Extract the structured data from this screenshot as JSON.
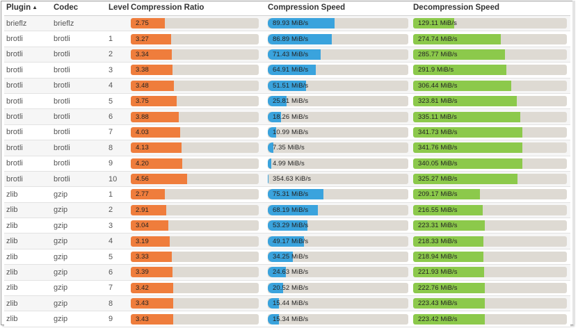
{
  "headers": {
    "plugin": "Plugin",
    "codec": "Codec",
    "level": "Level",
    "ratio": "Compression Ratio",
    "cspeed": "Compression Speed",
    "dspeed": "Decompression Speed"
  },
  "sort": {
    "column": "plugin",
    "direction": "ascending",
    "icon": "sort-ascending-icon"
  },
  "colors": {
    "ratio": "#ef7d3c",
    "cspeed": "#3aa3dd",
    "dspeed": "#8cc94b",
    "track": "#dedad3"
  },
  "scales": {
    "ratio_max": 10.4,
    "cspeed_max_mib": 190,
    "dspeed_max_mib": 480
  },
  "rows": [
    {
      "plugin": "brieflz",
      "codec": "brieflz",
      "level": "",
      "ratio": "2.75",
      "ratio_value": 2.75,
      "cspeed": "89.93 MiB/s",
      "cspeed_value": 89.93,
      "dspeed": "129.11 MiB/s",
      "dspeed_value": 129.11
    },
    {
      "plugin": "brotli",
      "codec": "brotli",
      "level": "1",
      "ratio": "3.27",
      "ratio_value": 3.27,
      "cspeed": "86.89 MiB/s",
      "cspeed_value": 86.89,
      "dspeed": "274.74 MiB/s",
      "dspeed_value": 274.74
    },
    {
      "plugin": "brotli",
      "codec": "brotli",
      "level": "2",
      "ratio": "3.34",
      "ratio_value": 3.34,
      "cspeed": "71.43 MiB/s",
      "cspeed_value": 71.43,
      "dspeed": "285.77 MiB/s",
      "dspeed_value": 285.77
    },
    {
      "plugin": "brotli",
      "codec": "brotli",
      "level": "3",
      "ratio": "3.38",
      "ratio_value": 3.38,
      "cspeed": "64.91 MiB/s",
      "cspeed_value": 64.91,
      "dspeed": "291.9 MiB/s",
      "dspeed_value": 291.9
    },
    {
      "plugin": "brotli",
      "codec": "brotli",
      "level": "4",
      "ratio": "3.48",
      "ratio_value": 3.48,
      "cspeed": "51.51 MiB/s",
      "cspeed_value": 51.51,
      "dspeed": "306.44 MiB/s",
      "dspeed_value": 306.44
    },
    {
      "plugin": "brotli",
      "codec": "brotli",
      "level": "5",
      "ratio": "3.75",
      "ratio_value": 3.75,
      "cspeed": "25.81 MiB/s",
      "cspeed_value": 25.81,
      "dspeed": "323.81 MiB/s",
      "dspeed_value": 323.81
    },
    {
      "plugin": "brotli",
      "codec": "brotli",
      "level": "6",
      "ratio": "3.88",
      "ratio_value": 3.88,
      "cspeed": "18.26 MiB/s",
      "cspeed_value": 18.26,
      "dspeed": "335.11 MiB/s",
      "dspeed_value": 335.11
    },
    {
      "plugin": "brotli",
      "codec": "brotli",
      "level": "7",
      "ratio": "4.03",
      "ratio_value": 4.03,
      "cspeed": "10.99 MiB/s",
      "cspeed_value": 10.99,
      "dspeed": "341.73 MiB/s",
      "dspeed_value": 341.73
    },
    {
      "plugin": "brotli",
      "codec": "brotli",
      "level": "8",
      "ratio": "4.13",
      "ratio_value": 4.13,
      "cspeed": "7.35 MiB/s",
      "cspeed_value": 7.35,
      "dspeed": "341.76 MiB/s",
      "dspeed_value": 341.76
    },
    {
      "plugin": "brotli",
      "codec": "brotli",
      "level": "9",
      "ratio": "4.20",
      "ratio_value": 4.2,
      "cspeed": "4.99 MiB/s",
      "cspeed_value": 4.99,
      "dspeed": "340.05 MiB/s",
      "dspeed_value": 340.05
    },
    {
      "plugin": "brotli",
      "codec": "brotli",
      "level": "10",
      "ratio": "4.56",
      "ratio_value": 4.56,
      "cspeed": "354.63 KiB/s",
      "cspeed_value": 0.346,
      "dspeed": "325.27 MiB/s",
      "dspeed_value": 325.27
    },
    {
      "plugin": "zlib",
      "codec": "gzip",
      "level": "1",
      "ratio": "2.77",
      "ratio_value": 2.77,
      "cspeed": "75.31 MiB/s",
      "cspeed_value": 75.31,
      "dspeed": "209.17 MiB/s",
      "dspeed_value": 209.17
    },
    {
      "plugin": "zlib",
      "codec": "gzip",
      "level": "2",
      "ratio": "2.91",
      "ratio_value": 2.91,
      "cspeed": "68.19 MiB/s",
      "cspeed_value": 68.19,
      "dspeed": "216.55 MiB/s",
      "dspeed_value": 216.55
    },
    {
      "plugin": "zlib",
      "codec": "gzip",
      "level": "3",
      "ratio": "3.04",
      "ratio_value": 3.04,
      "cspeed": "53.29 MiB/s",
      "cspeed_value": 53.29,
      "dspeed": "223.31 MiB/s",
      "dspeed_value": 223.31
    },
    {
      "plugin": "zlib",
      "codec": "gzip",
      "level": "4",
      "ratio": "3.19",
      "ratio_value": 3.19,
      "cspeed": "49.17 MiB/s",
      "cspeed_value": 49.17,
      "dspeed": "218.33 MiB/s",
      "dspeed_value": 218.33
    },
    {
      "plugin": "zlib",
      "codec": "gzip",
      "level": "5",
      "ratio": "3.33",
      "ratio_value": 3.33,
      "cspeed": "34.25 MiB/s",
      "cspeed_value": 34.25,
      "dspeed": "218.94 MiB/s",
      "dspeed_value": 218.94
    },
    {
      "plugin": "zlib",
      "codec": "gzip",
      "level": "6",
      "ratio": "3.39",
      "ratio_value": 3.39,
      "cspeed": "24.63 MiB/s",
      "cspeed_value": 24.63,
      "dspeed": "221.93 MiB/s",
      "dspeed_value": 221.93
    },
    {
      "plugin": "zlib",
      "codec": "gzip",
      "level": "7",
      "ratio": "3.42",
      "ratio_value": 3.42,
      "cspeed": "20.52 MiB/s",
      "cspeed_value": 20.52,
      "dspeed": "222.76 MiB/s",
      "dspeed_value": 222.76
    },
    {
      "plugin": "zlib",
      "codec": "gzip",
      "level": "8",
      "ratio": "3.43",
      "ratio_value": 3.43,
      "cspeed": "15.44 MiB/s",
      "cspeed_value": 15.44,
      "dspeed": "223.43 MiB/s",
      "dspeed_value": 223.43
    },
    {
      "plugin": "zlib",
      "codec": "gzip",
      "level": "9",
      "ratio": "3.43",
      "ratio_value": 3.43,
      "cspeed": "15.34 MiB/s",
      "cspeed_value": 15.34,
      "dspeed": "223.42 MiB/s",
      "dspeed_value": 223.42
    }
  ]
}
